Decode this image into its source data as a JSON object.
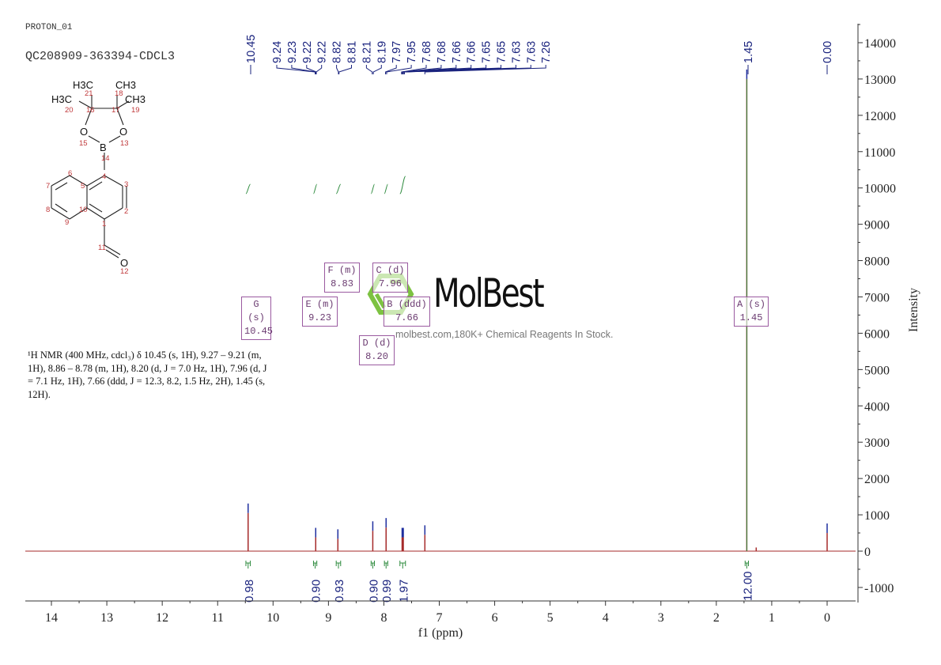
{
  "header": {
    "experiment": "PROTON_01",
    "sample": "QC208909-363394-CDCL3"
  },
  "description": "¹H NMR (400 MHz, cdcl₃) δ 10.45 (s, 1H), 9.27 – 9.21 (m, 1H), 8.86 – 8.78 (m, 1H), 8.20 (d, J = 7.0 Hz, 1H), 7.96 (d, J = 7.1 Hz, 1H), 7.66 (ddd, J = 12.3, 8.2, 1.5 Hz, 2H), 1.45 (s, 12H).",
  "watermark": {
    "brand": "MolBest",
    "tagline": "molbest.com,180K+ Chemical Reagents In Stock.",
    "color": "#7dc242"
  },
  "structure": {
    "labels": [
      "H3C",
      "CH3",
      "H3C",
      "CH3",
      "O",
      "O",
      "B",
      "O"
    ],
    "atom_numbers": [
      "1",
      "2",
      "3",
      "4",
      "5",
      "6",
      "7",
      "8",
      "9",
      "10",
      "11",
      "12",
      "13",
      "14",
      "15",
      "16",
      "17",
      "18",
      "19",
      "20",
      "21"
    ]
  },
  "multiplets": [
    {
      "name": "G (s)",
      "shift": "10.45"
    },
    {
      "name": "E (m)",
      "shift": "9.23"
    },
    {
      "name": "F (m)",
      "shift": "8.83"
    },
    {
      "name": "C (d)",
      "shift": "7.96"
    },
    {
      "name": "B (ddd)",
      "shift": "7.66"
    },
    {
      "name": "D (d)",
      "shift": "8.20"
    },
    {
      "name": "A (s)",
      "shift": "1.45"
    }
  ],
  "chart_data": {
    "type": "line",
    "xlabel": "f1 (ppm)",
    "ylabel": "Intensity",
    "xlim": [
      14.5,
      -0.5
    ],
    "ylim": [
      -1400,
      14400
    ],
    "x_reversed": true,
    "xticks": [
      "14",
      "13",
      "12",
      "11",
      "10",
      "9",
      "8",
      "7",
      "6",
      "5",
      "4",
      "3",
      "2",
      "1",
      "0"
    ],
    "yticks": [
      "-1000",
      "0",
      "1000",
      "2000",
      "3000",
      "4000",
      "5000",
      "6000",
      "7000",
      "8000",
      "9000",
      "10000",
      "11000",
      "12000",
      "13000",
      "14000"
    ],
    "grid": false,
    "colors": {
      "spectrum": "#a52a2a",
      "peak_marker": "#1f2f9f",
      "integral": "#2e8b3e",
      "label": "#1a237e"
    },
    "peaks": [
      {
        "ppm": 10.45,
        "intensity": 1050
      },
      {
        "ppm": 9.23,
        "intensity": 380
      },
      {
        "ppm": 8.83,
        "intensity": 340
      },
      {
        "ppm": 8.2,
        "intensity": 560
      },
      {
        "ppm": 7.96,
        "intensity": 650
      },
      {
        "ppm": 7.66,
        "intensity": 380
      },
      {
        "ppm": 7.26,
        "intensity": 450
      },
      {
        "ppm": 1.45,
        "intensity": 13000
      },
      {
        "ppm": 1.28,
        "intensity": 100
      },
      {
        "ppm": 0.0,
        "intensity": 500
      }
    ],
    "peak_labels": [
      "10.45",
      "9.24",
      "9.23",
      "9.22",
      "9.22",
      "8.82",
      "8.81",
      "8.21",
      "8.19",
      "7.97",
      "7.95",
      "7.68",
      "7.68",
      "7.66",
      "7.66",
      "7.65",
      "7.65",
      "7.63",
      "7.63",
      "7.26",
      "1.45",
      "0.00"
    ],
    "integrals": [
      {
        "from": 10.49,
        "to": 10.41,
        "value": "0.98"
      },
      {
        "from": 9.27,
        "to": 9.21,
        "value": "0.90"
      },
      {
        "from": 8.86,
        "to": 8.78,
        "value": "0.93"
      },
      {
        "from": 8.23,
        "to": 8.17,
        "value": "0.90"
      },
      {
        "from": 7.99,
        "to": 7.93,
        "value": "0.99"
      },
      {
        "from": 7.71,
        "to": 7.61,
        "value": "1.97"
      },
      {
        "from": 1.48,
        "to": 1.42,
        "value": "12.00"
      }
    ]
  }
}
